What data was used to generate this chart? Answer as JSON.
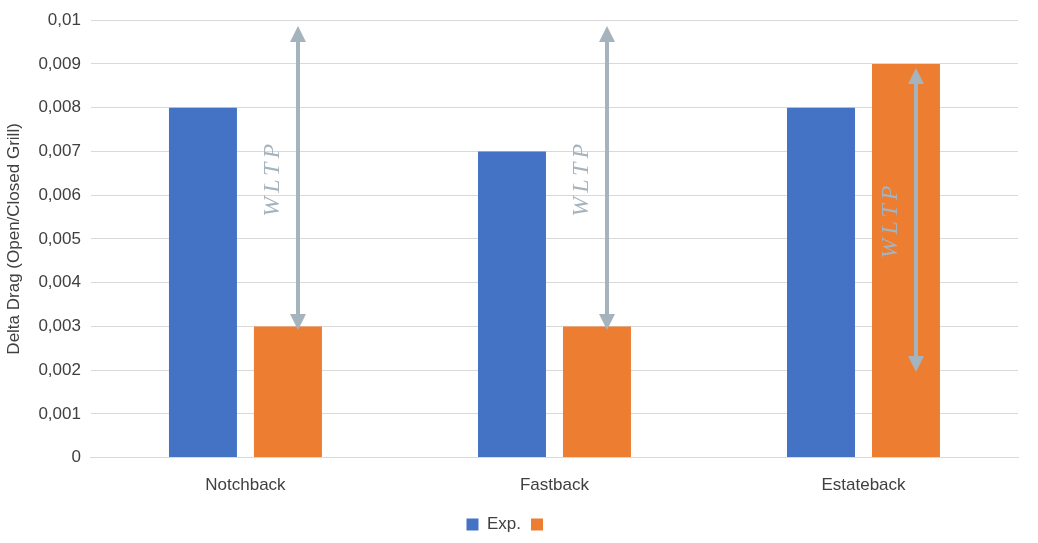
{
  "chart_data": {
    "type": "bar",
    "ylabel": "Delta Drag (Open/Closed Grill)",
    "categories": [
      "Notchback",
      "Fastback",
      "Estateback"
    ],
    "series": [
      {
        "name": "Exp.",
        "color": "#4472c4",
        "values": [
          0.008,
          0.007,
          0.008
        ]
      },
      {
        "color": "#ed7d31",
        "values": [
          0.003,
          0.003,
          0.009
        ]
      }
    ],
    "ylim": [
      0,
      0.01
    ],
    "yticks": [
      0,
      {
        "value": 0.001,
        "label": "0,001"
      },
      {
        "value": 0.002,
        "label": "0,002"
      },
      {
        "value": 0.003,
        "label": "0,003"
      },
      {
        "value": 0.004,
        "label": "0,004"
      },
      {
        "value": 0.005,
        "label": "0,005"
      },
      {
        "value": 0.006,
        "label": "0,006"
      },
      {
        "value": 0.007,
        "label": "0,007"
      },
      {
        "value": 0.008,
        "label": "0,008"
      },
      {
        "value": 0.009,
        "label": "0,009"
      },
      {
        "value": 0.01,
        "label": "0,01"
      }
    ],
    "grid": "y",
    "legend": "bottom",
    "annotations": [
      "WLTP",
      "WLTP",
      "WLTP"
    ]
  }
}
